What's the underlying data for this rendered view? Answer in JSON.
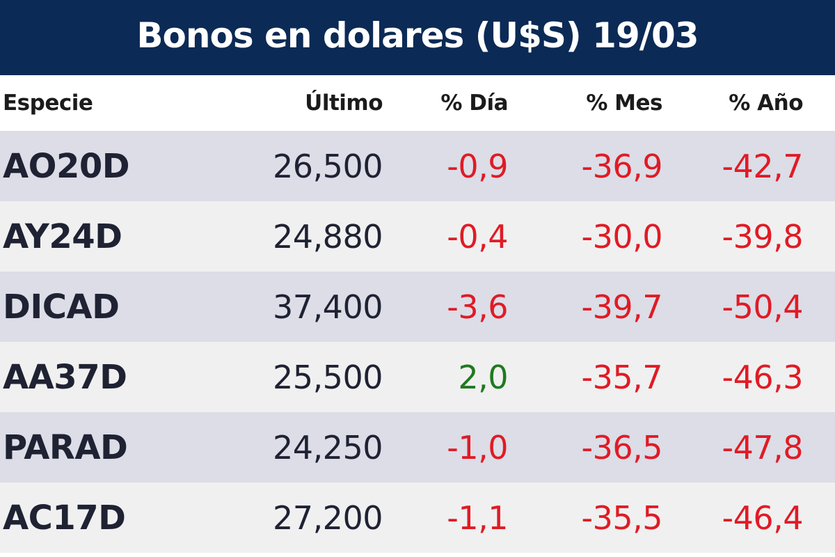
{
  "title": "Bonos en dolares (U$S) 19/03",
  "headers": {
    "especie": "Especie",
    "ultimo": "Último",
    "dia": "% Día",
    "mes": "% Mes",
    "anio": "% Año"
  },
  "colors": {
    "title_bg": "#0b2a55",
    "negative": "#e01b25",
    "positive": "#1f7a1f",
    "row_alt": "#dcdde7",
    "row_plain": "#f0f0f0"
  },
  "rows": [
    {
      "especie": "AO20D",
      "ultimo": "26,500",
      "dia": "-0,9",
      "mes": "-36,9",
      "anio": "-42,7"
    },
    {
      "especie": "AY24D",
      "ultimo": "24,880",
      "dia": "-0,4",
      "mes": "-30,0",
      "anio": "-39,8"
    },
    {
      "especie": "DICAD",
      "ultimo": "37,400",
      "dia": "-3,6",
      "mes": "-39,7",
      "anio": "-50,4"
    },
    {
      "especie": "AA37D",
      "ultimo": "25,500",
      "dia": "2,0",
      "mes": "-35,7",
      "anio": "-46,3"
    },
    {
      "especie": "PARAD",
      "ultimo": "24,250",
      "dia": "-1,0",
      "mes": "-36,5",
      "anio": "-47,8"
    },
    {
      "especie": "AC17D",
      "ultimo": "27,200",
      "dia": "-1,1",
      "mes": "-35,5",
      "anio": "-46,4"
    }
  ]
}
